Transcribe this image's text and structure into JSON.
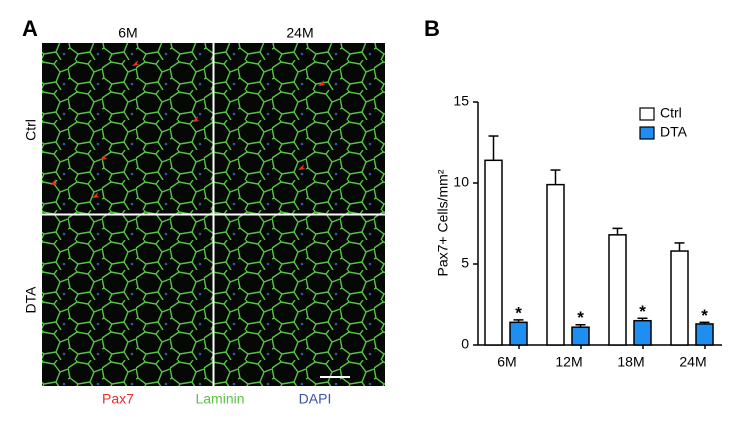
{
  "panel_a": {
    "label": "A",
    "columns": [
      "6M",
      "24M"
    ],
    "rows": [
      "Ctrl",
      "DTA"
    ],
    "stains": [
      {
        "name": "Pax7",
        "color": "#e8302a"
      },
      {
        "name": "Laminin",
        "color": "#5cc24a"
      },
      {
        "name": "DAPI",
        "color": "#3a52a8"
      }
    ]
  },
  "chart_data": {
    "type": "bar",
    "label": "B",
    "ylabel": "Pax7+ Cells/mm²",
    "categories": [
      "6M",
      "12M",
      "18M",
      "24M"
    ],
    "series": [
      {
        "name": "Ctrl",
        "color": "#ffffff",
        "values": [
          11.4,
          9.9,
          6.8,
          5.8
        ],
        "errors": [
          1.5,
          0.9,
          0.4,
          0.5
        ]
      },
      {
        "name": "DTA",
        "color": "#1e8ef0",
        "values": [
          1.4,
          1.1,
          1.5,
          1.3
        ],
        "errors": [
          0.15,
          0.15,
          0.15,
          0.1
        ],
        "value_labels": [
          "*",
          "*",
          "*",
          "*"
        ]
      }
    ],
    "ylim": [
      0,
      15
    ],
    "yticks": [
      0,
      5,
      10,
      15
    ],
    "legend": "top-right"
  }
}
